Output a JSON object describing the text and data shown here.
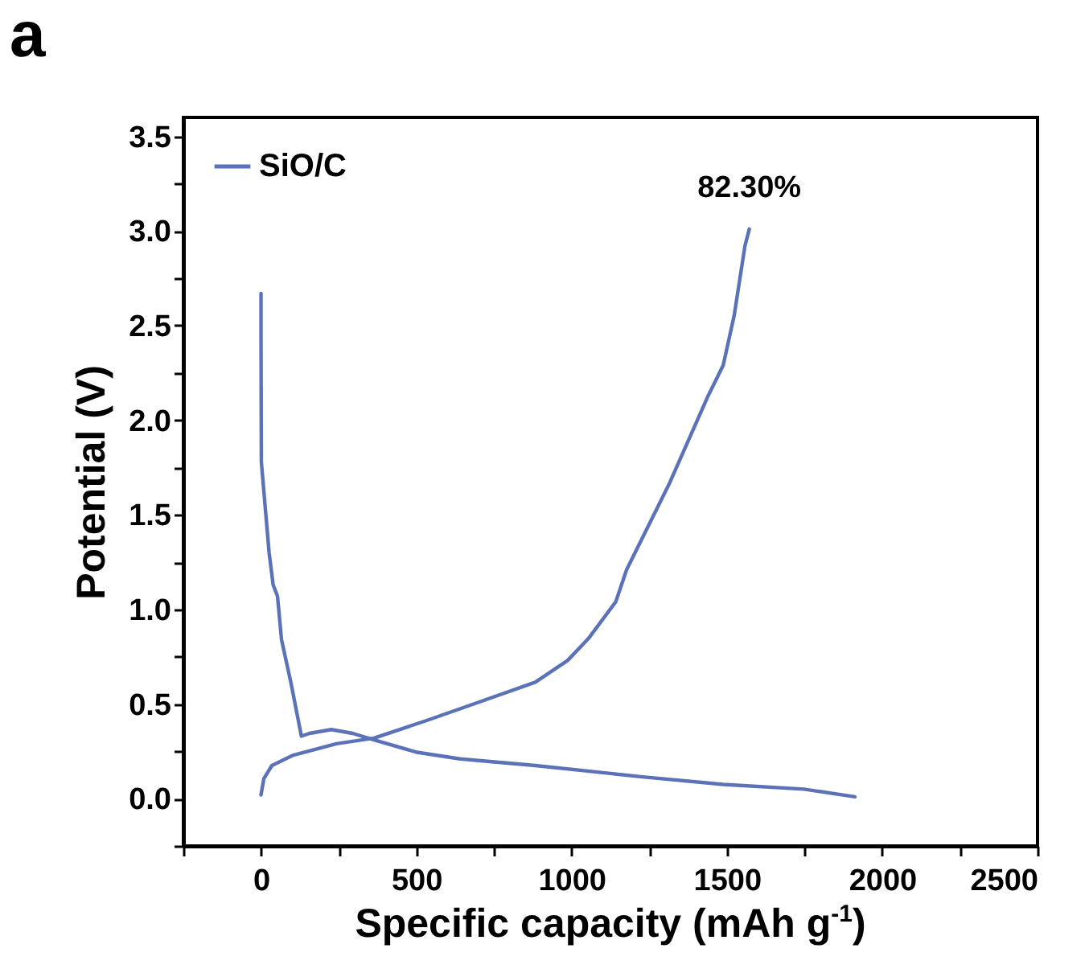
{
  "chart_data": {
    "type": "line",
    "title": "a",
    "xlabel": "Specific capacity (mAh g$^{-1}$)",
    "ylabel": "Potential (V)",
    "xlim": [
      -250,
      2500
    ],
    "ylim": [
      -0.25,
      3.6
    ],
    "xticks": [
      {
        "value": -250,
        "label": null
      },
      0,
      {
        "value": 250,
        "label": null
      },
      500,
      {
        "value": 750,
        "label": null
      },
      1000,
      {
        "value": 1250,
        "label": null
      },
      1500,
      {
        "value": 1750,
        "label": null
      },
      2000,
      {
        "value": 2250,
        "label": null
      },
      2500
    ],
    "yticks": [
      {
        "value": -0.25,
        "label": null
      },
      {
        "value": 0,
        "label": "0.0"
      },
      {
        "value": 0.25,
        "label": null
      },
      0.5,
      {
        "value": 0.75,
        "label": null
      },
      {
        "value": 1,
        "label": "1.0"
      },
      {
        "value": 1.25,
        "label": null
      },
      1.5,
      {
        "value": 1.75,
        "label": null
      },
      {
        "value": 2,
        "label": "2.0"
      },
      {
        "value": 2.25,
        "label": null
      },
      2.5,
      {
        "value": 2.75,
        "label": null
      },
      {
        "value": 3,
        "label": "3.0"
      },
      {
        "value": 3.25,
        "label": null
      },
      3.5
    ],
    "legend": "top left",
    "grid": false,
    "marker": "none",
    "line_style": "solid",
    "series": [
      {
        "name": "SiO/C",
        "color": "#5b72b8",
        "x": [
          0,
          0,
          1,
          26,
          39,
          53,
          66,
          96,
          130,
          156,
          226,
          295,
          364,
          502,
          641,
          883,
          1229,
          1488,
          1748,
          1912
        ],
        "values": [
          2.67,
          2.43,
          1.78,
          1.3,
          1.13,
          1.07,
          0.84,
          0.615,
          0.33,
          0.345,
          0.365,
          0.345,
          0.31,
          0.245,
          0.21,
          0.175,
          0.115,
          0.075,
          0.05,
          0.01
        ]
      },
      {
        "color": "#5b72b8",
        "x": [
          0,
          9,
          35,
          104,
          243,
          364,
          537,
          710,
          883,
          987,
          1056,
          1142,
          1177,
          1316,
          1437,
          1488,
          1523,
          1558,
          1572
        ],
        "values": [
          0.02,
          0.105,
          0.175,
          0.23,
          0.29,
          0.32,
          0.415,
          0.515,
          0.615,
          0.73,
          0.85,
          1.04,
          1.21,
          1.67,
          2.12,
          2.29,
          2.55,
          2.92,
          3.01
        ]
      }
    ],
    "annotations": [
      {
        "text": "82.30%",
        "x": 1572,
        "y": 3.01
      }
    ]
  }
}
